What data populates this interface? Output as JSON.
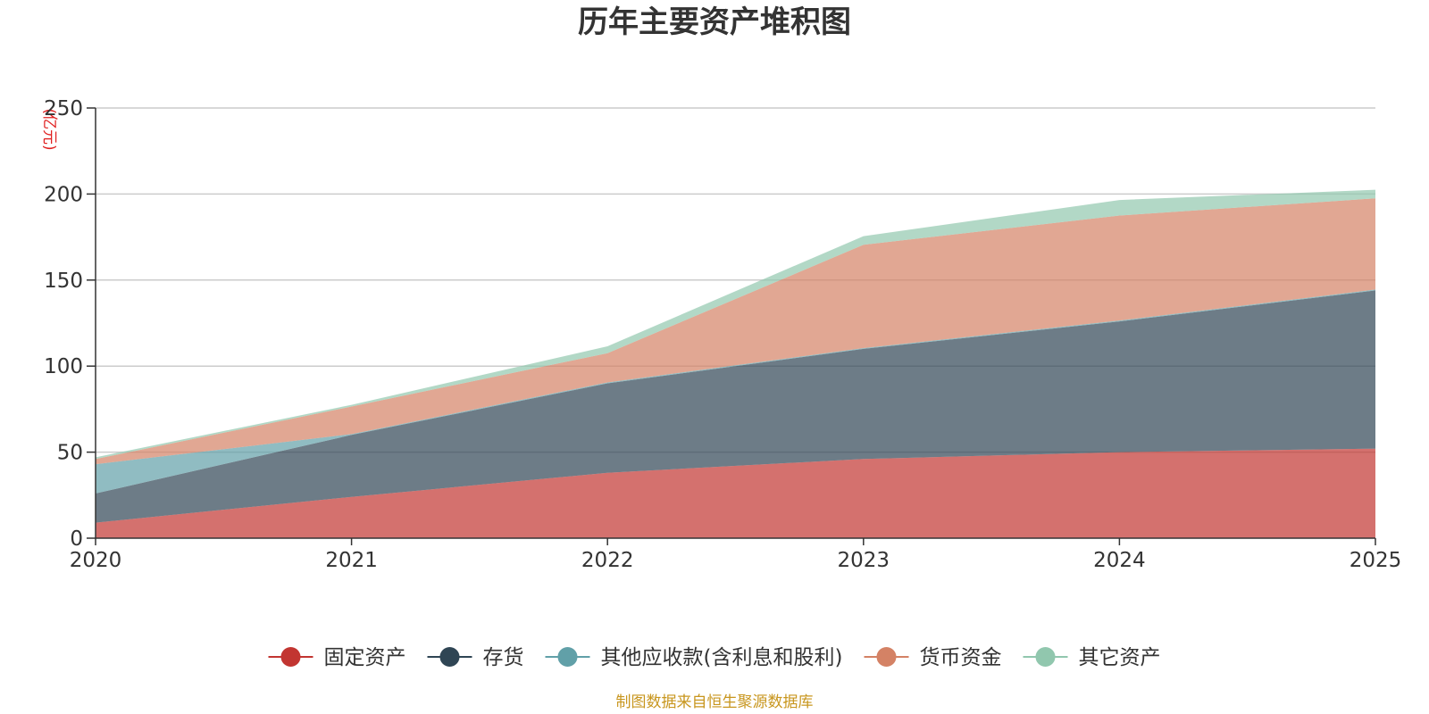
{
  "chart_data": {
    "type": "area",
    "stacked": true,
    "title": "历年主要资产堆积图",
    "ylabel": "(亿元)",
    "xlabel": "",
    "ylim": [
      0,
      250
    ],
    "yticks": [
      0,
      50,
      100,
      150,
      200,
      250
    ],
    "categories": [
      "2020",
      "2021",
      "2022",
      "2023",
      "2024",
      "2025"
    ],
    "series": [
      {
        "name": "固定资产",
        "color": "#c23531",
        "values": [
          9,
          24,
          38,
          46,
          50,
          52
        ]
      },
      {
        "name": "存货",
        "color": "#2f4554",
        "values": [
          17,
          36,
          52,
          64,
          76,
          92
        ]
      },
      {
        "name": "其他应收款(含利息和股利)",
        "color": "#61a0a8",
        "values": [
          17,
          0.5,
          0.5,
          0.5,
          0.5,
          0.5
        ]
      },
      {
        "name": "货币资金",
        "color": "#d48265",
        "values": [
          3,
          16,
          17,
          60,
          61,
          53
        ]
      },
      {
        "name": "其它资产",
        "color": "#91c7ae",
        "values": [
          1,
          1,
          4,
          5,
          9,
          5
        ]
      }
    ],
    "legend_position": "bottom",
    "grid": true
  },
  "footer": {
    "source": "制图数据来自恒生聚源数据库"
  }
}
